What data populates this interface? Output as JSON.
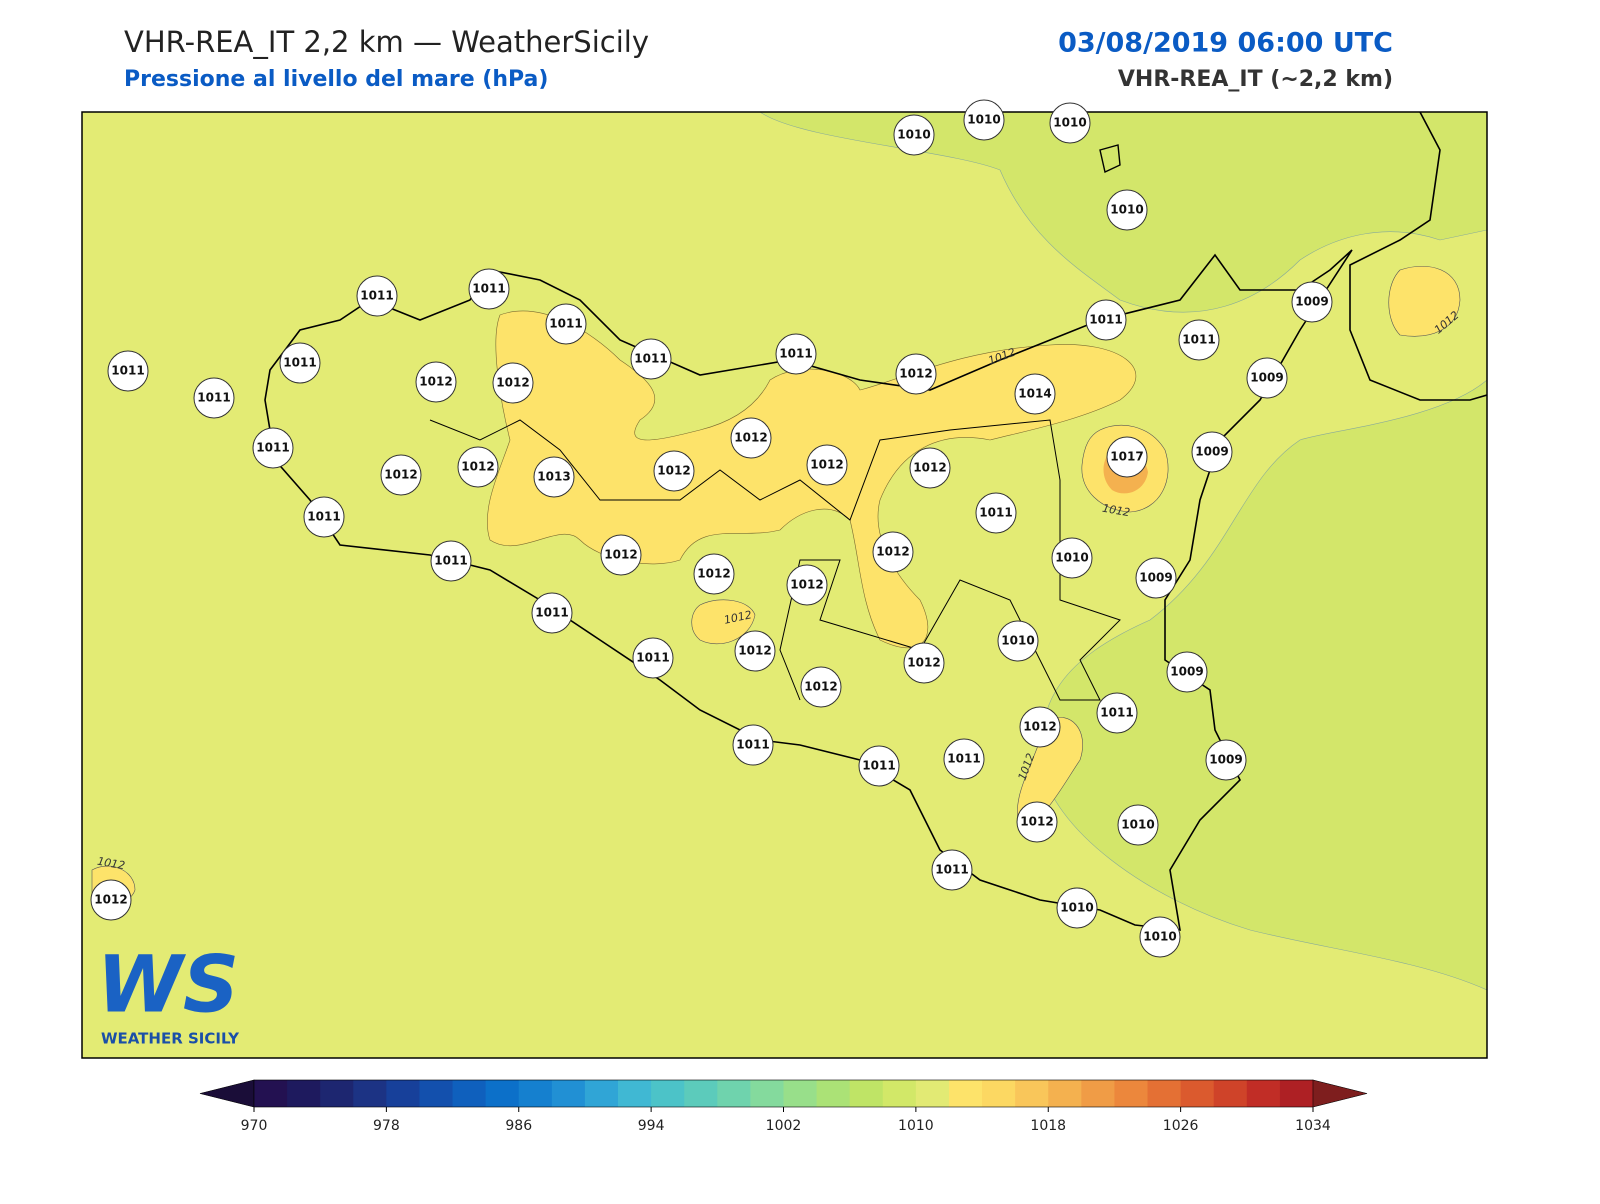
{
  "header": {
    "title": "VHR-REA_IT 2,2 km — WeatherSicily",
    "subtitle": "Pressione al livello del mare (hPa)",
    "date": "03/08/2019 06:00 UTC",
    "model": "VHR-REA_IT (~2,2 km)"
  },
  "stations": {
    "values": [
      1010,
      1010,
      1010,
      1010,
      1011,
      1011,
      1011,
      1011,
      1011,
      1011,
      1012,
      1012,
      1011,
      1011,
      1012,
      1011,
      1011,
      1009,
      1009,
      1014,
      1011,
      1012,
      1012,
      1013,
      1012,
      1012,
      1012,
      1012,
      1017,
      1009,
      1011,
      1011,
      1011,
      1012,
      1012,
      1012,
      1012,
      1010,
      1009,
      1011,
      1011,
      1012,
      1012,
      1010,
      1009,
      1012,
      1012,
      1011,
      1011,
      1011,
      1011,
      1009,
      1012,
      1010,
      1011,
      1010,
      1010,
      1012
    ]
  },
  "contour_labels": [
    "1012",
    "1012",
    "1012",
    "1012",
    "1012",
    "1012"
  ],
  "logo": {
    "mark": "WS",
    "name": "WEATHER SICILY"
  },
  "colorbar": {
    "ticks": [
      970,
      978,
      986,
      994,
      1002,
      1010,
      1018,
      1026,
      1034
    ],
    "colors": [
      "#231151",
      "#1e1a5e",
      "#1d2670",
      "#1c3384",
      "#17409a",
      "#1350ad",
      "#0f60bd",
      "#0c70c9",
      "#1580cf",
      "#2190d4",
      "#30a5d6",
      "#40b8d3",
      "#4cc3c8",
      "#5ccbbb",
      "#6fd3ad",
      "#84da9d",
      "#98df8a",
      "#abe276",
      "#bfe466",
      "#d2e868",
      "#e2ea74",
      "#fde36a",
      "#fcd862",
      "#f9c65a",
      "#f4b14f",
      "#f09c46",
      "#ec873c",
      "#e47034",
      "#db5a2e",
      "#cf4329",
      "#c12d26",
      "#ae2024"
    ],
    "extend_colors": [
      "#1a0d38",
      "#7e1e1e"
    ]
  }
}
